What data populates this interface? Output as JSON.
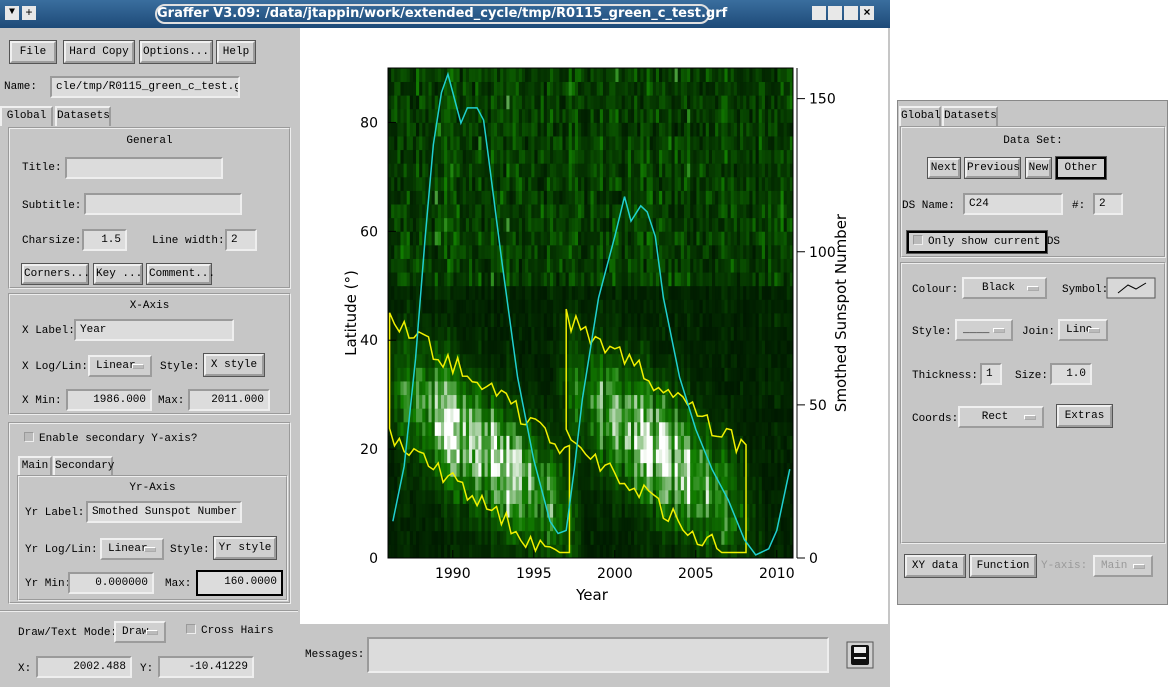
{
  "window": {
    "title": "Graffer V3.09: /data/jtappin/work/extended_cycle/tmp/R0115_green_c_test.grf"
  },
  "menu": [
    "File",
    "Hard Copy",
    "Options...",
    "Help"
  ],
  "name": {
    "label": "Name:",
    "value": "cle/tmp/R0115_green_c_test.grf"
  },
  "tabs": [
    "Global",
    "Datasets"
  ],
  "general": {
    "heading": "General",
    "title_label": "Title:",
    "subtitle_label": "Subtitle:",
    "charsize_label": "Charsize:",
    "charsize": "1.5",
    "linewidth_label": "Line width:",
    "linewidth": "2",
    "buttons": [
      "Corners...",
      "Key ...",
      "Comment..."
    ]
  },
  "xaxis": {
    "heading": "X-Axis",
    "label_label": "X Label:",
    "label": "Year",
    "loglin_label": "X Log/Lin:",
    "loglin": "Linear",
    "style_label": "Style:",
    "style_button": "X style",
    "min_label": "X Min:",
    "min": "1986.000",
    "max_label": "Max:",
    "max": "2011.000"
  },
  "secondary": {
    "checkbox": "Enable secondary Y-axis?",
    "tabs": [
      "Main",
      "Secondary"
    ]
  },
  "yraxis": {
    "heading": "Yr-Axis",
    "label_label": "Yr Label:",
    "label": "Smothed Sunspot Number",
    "loglin_label": "Yr Log/Lin:",
    "loglin": "Linear",
    "style_label": "Style:",
    "style_button": "Yr style",
    "min_label": "Yr Min:",
    "min": "0.000000",
    "max_label": "Max:",
    "max": "160.0000"
  },
  "bottom": {
    "mode_label": "Draw/Text Mode:",
    "mode": "Draw",
    "crosshairs": "Cross Hairs",
    "x_label": "X:",
    "x": "2002.488",
    "y_label": "Y:",
    "y": "-10.41229",
    "messages_label": "Messages:"
  },
  "chart_data": {
    "type": "line",
    "xlabel": "Year",
    "ylabel": "Latitude (°)",
    "y2label": "Smothed Sunspot Number",
    "xlim": [
      1986,
      2011
    ],
    "xticks": [
      1990,
      1995,
      2000,
      2005,
      2010
    ],
    "ylim": [
      0,
      90
    ],
    "yticks": [
      0,
      20,
      40,
      60,
      80
    ],
    "y2lim": [
      0,
      160
    ],
    "y2ticks": [
      0,
      50,
      100,
      150
    ],
    "series": [
      {
        "color": "#20d0d0",
        "axis": "y2",
        "x": [
          1986.3,
          1987,
          1987.7,
          1988.3,
          1988.8,
          1989.3,
          1989.7,
          1990.1,
          1990.5,
          1990.9,
          1991.5,
          1991.9,
          1992.2,
          1993,
          1994,
          1995,
          1996,
          1996.5,
          1997,
          1997.5,
          1998,
          1999,
          2000,
          2000.6,
          2001,
          2001.6,
          2002,
          2002.5,
          2003,
          2004,
          2005,
          2006,
          2007,
          2008,
          2008.7,
          2009.5,
          2010,
          2010.8
        ],
        "values": [
          12,
          30,
          65,
          105,
          135,
          152,
          158,
          150,
          142,
          147,
          147,
          143,
          131,
          98,
          59,
          32,
          12,
          8,
          9,
          29,
          52,
          85,
          105,
          118,
          110,
          115,
          113,
          105,
          85,
          59,
          42,
          29,
          19,
          6,
          1,
          3,
          9,
          29
        ]
      }
    ]
  },
  "datasets_panel": {
    "tabs": [
      "Global",
      "Datasets"
    ],
    "heading": "Data Set:",
    "buttons": [
      "Next",
      "Previous",
      "New",
      "Other"
    ],
    "ds_name_label": "DS Name:",
    "ds_name": "C24",
    "num_label": "#:",
    "num": "2",
    "only_current": "Only show current DS",
    "colour_label": "Colour:",
    "colour": "Black",
    "symbol_label": "Symbol:",
    "style_label": "Style:",
    "style": "____",
    "join_label": "Join:",
    "join": "Line",
    "thickness_label": "Thickness:",
    "thickness": "1",
    "size_label": "Size:",
    "size": "1.0",
    "coords_label": "Coords:",
    "coords": "Rect",
    "extras": "Extras",
    "bottom_buttons": [
      "XY data",
      "Function"
    ],
    "yaxis_label": "Y-axis:",
    "yaxis": "Main"
  }
}
